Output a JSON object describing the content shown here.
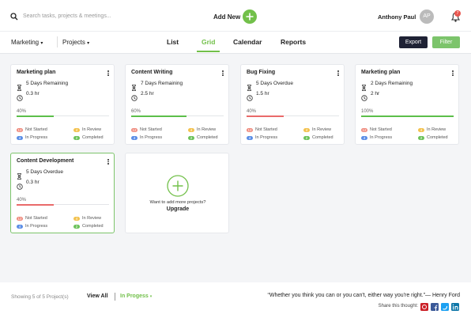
{
  "header": {
    "search_placeholder": "Search tasks, projects & meetings...",
    "add_new": "Add New",
    "user_name": "Anthony Paul",
    "user_initials": "AP",
    "notification_count": "7"
  },
  "toolbar": {
    "workspace": "Marketing",
    "projects_menu": "Projects",
    "tabs": [
      "List",
      "Grid",
      "Calendar",
      "Reports"
    ],
    "active_tab": 1,
    "export": "Export",
    "filter": "Filter"
  },
  "projects": [
    {
      "title": "Marketing plan",
      "deadline": "5 Days Remaining",
      "hours": "0.3 hr",
      "progress": {
        "value": 40,
        "label": "40%"
      },
      "progress_color": "#5cbf4a",
      "statuses": [
        {
          "count": "12",
          "label": "Not Started"
        },
        {
          "count": "4",
          "label": "In Review"
        },
        {
          "count": "4",
          "label": "In Progress"
        },
        {
          "count": "2",
          "label": "Completed"
        }
      ]
    },
    {
      "title": "Content Writing",
      "deadline": "7 Days Remaining",
      "hours": "2.5 hr",
      "progress": {
        "value": 60,
        "label": "60%"
      },
      "progress_color": "#5cbf4a",
      "statuses": [
        {
          "count": "12",
          "label": "Not Started"
        },
        {
          "count": "4",
          "label": "In Review"
        },
        {
          "count": "4",
          "label": "In Progress"
        },
        {
          "count": "2",
          "label": "Completed"
        }
      ]
    },
    {
      "title": "Bug Fixing",
      "deadline": "5 Days Overdue",
      "hours": "1.5 hr",
      "progress": {
        "value": 40,
        "label": "40%"
      },
      "progress_color": "#e96a6a",
      "statuses": [
        {
          "count": "12",
          "label": "Not Started"
        },
        {
          "count": "4",
          "label": "In Review"
        },
        {
          "count": "4",
          "label": "In Progress"
        },
        {
          "count": "2",
          "label": "Completed"
        }
      ]
    },
    {
      "title": "Marketing plan",
      "deadline": "2 Days Remaining",
      "hours": "2 hr",
      "progress": {
        "value": 100,
        "label": "100%"
      },
      "progress_color": "#5cbf4a",
      "statuses": [
        {
          "count": "12",
          "label": "Not Started"
        },
        {
          "count": "4",
          "label": "In Review"
        },
        {
          "count": "4",
          "label": "In Progress"
        },
        {
          "count": "2",
          "label": "Completed"
        }
      ]
    },
    {
      "title": "Content Development",
      "deadline": "5 Days Overdue",
      "hours": "0.3 hr",
      "progress": {
        "value": 40,
        "label": "40%"
      },
      "progress_color": "#e96a6a",
      "selected": true,
      "statuses": [
        {
          "count": "12",
          "label": "Not Started"
        },
        {
          "count": "4",
          "label": "In Review"
        },
        {
          "count": "4",
          "label": "In Progress"
        },
        {
          "count": "2",
          "label": "Completed"
        }
      ]
    }
  ],
  "add_card": {
    "prompt": "Want to add more projects?",
    "action": "Upgrade"
  },
  "footer": {
    "summary": "Showing 5 of 5 Project(s)",
    "view_all": "View All",
    "status_filter": "In Progess",
    "quote": "“Whether you think you can or you can't, either way you're right.”— Henry Ford",
    "share_label": "Share this thought:"
  }
}
